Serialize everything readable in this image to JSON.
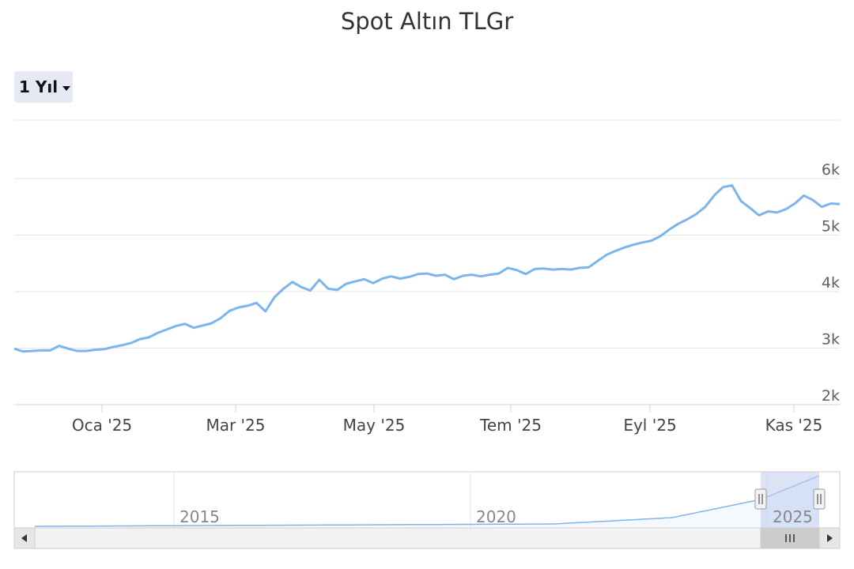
{
  "title": "Spot Altın TLGr",
  "range_selector": {
    "label": "1 Yıl"
  },
  "icons": {
    "caret": "caret-down-icon",
    "scroll_left": "chevron-left-icon",
    "scroll_right": "chevron-right-icon",
    "grip": "grip-lines-icon"
  },
  "colors": {
    "line": "#7cb5ec",
    "navigator_fill": "#c3d1ee",
    "grid": "#e6e6e6",
    "button_bg": "#e6e9f4"
  },
  "navigator": {
    "labels": [
      "2015",
      "2020",
      "2025"
    ]
  },
  "chart_data": {
    "type": "line",
    "title": "Spot Altın TLGr",
    "x_ticks": [
      "Oca '25",
      "Mar '25",
      "May '25",
      "Tem '25",
      "Eyl '25",
      "Kas '25"
    ],
    "y_ticks": [
      "2k",
      "3k",
      "4k",
      "5k",
      "6k"
    ],
    "ylim": [
      2000,
      6000
    ],
    "grid": true,
    "series": [
      {
        "values": [
          2990,
          2940,
          2950,
          2960,
          2960,
          3040,
          2990,
          2950,
          2950,
          2970,
          2980,
          3020,
          3050,
          3090,
          3160,
          3190,
          3270,
          3330,
          3390,
          3430,
          3360,
          3400,
          3440,
          3530,
          3660,
          3720,
          3750,
          3800,
          3650,
          3900,
          4050,
          4170,
          4080,
          4020,
          4210,
          4050,
          4030,
          4140,
          4180,
          4220,
          4150,
          4230,
          4270,
          4230,
          4260,
          4310,
          4320,
          4280,
          4300,
          4220,
          4280,
          4300,
          4270,
          4300,
          4320,
          4420,
          4380,
          4310,
          4400,
          4410,
          4390,
          4400,
          4390,
          4420,
          4430,
          4540,
          4650,
          4720,
          4780,
          4830,
          4870,
          4900,
          4980,
          5100,
          5200,
          5280,
          5370,
          5500,
          5700,
          5850,
          5880,
          5600,
          5480,
          5350,
          5420,
          5400,
          5460,
          5560,
          5700,
          5620,
          5500,
          5560,
          5550
        ]
      }
    ]
  }
}
